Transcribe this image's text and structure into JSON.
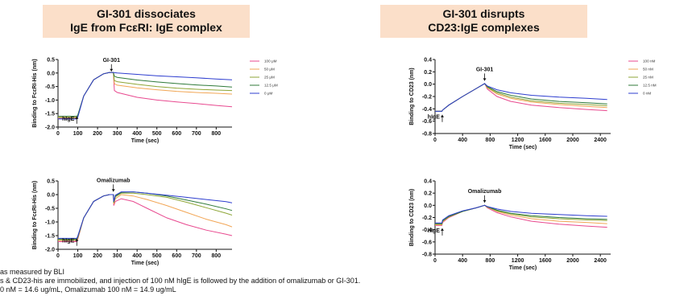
{
  "titles": {
    "left": [
      "GI-301 dissociates",
      "IgE from FcεRI: IgE complex"
    ],
    "right": [
      "GI-301 disrupts",
      "CD23:IgE complexes"
    ]
  },
  "footnotes": [
    "as measured by BLI",
    "s & CD23-his are immobilized, and injection of 100 nM hIgE is followed by the addition of omalizumab or GI-301.",
    "0 nM = 14.6 ug/mL, Omalizumab 100 nM = 14.9 ug/mL"
  ],
  "colors": {
    "title_bg": "#fbdfc9",
    "series": [
      "#e8498f",
      "#f2a656",
      "#8ea637",
      "#2f7a3a",
      "#2d3dcf"
    ]
  },
  "chart_data": [
    {
      "type": "line",
      "ylabel": "Binding to FcεRI-His (nm)",
      "xlabel": "Time (sec)",
      "xlim": [
        0,
        880
      ],
      "ylim": [
        -2.0,
        0.5
      ],
      "xticks": [
        0,
        100,
        200,
        300,
        400,
        500,
        600,
        700,
        800
      ],
      "yticks": [
        0.5,
        0.0,
        -0.5,
        -1.0,
        -1.5,
        -2.0
      ],
      "ytick_labels": [
        "0.5",
        "0.0",
        "-0.5",
        "-1.0",
        "-1.5",
        "-2.0"
      ],
      "annotations": [
        {
          "text": "GI-301",
          "x": 270,
          "y": 0.0,
          "dir": "down"
        },
        {
          "text": "hIgE",
          "x": 95,
          "y": -1.55,
          "dir": "up"
        }
      ],
      "legend": [
        "100 μM",
        "50 μM",
        "25 μM",
        "12.5 μM",
        "0 μM"
      ],
      "series": [
        {
          "name": "100 μM",
          "x": [
            0,
            95,
            100,
            130,
            180,
            230,
            260,
            280,
            285,
            300,
            400,
            500,
            600,
            700,
            800,
            880
          ],
          "y": [
            -1.68,
            -1.68,
            -1.62,
            -0.85,
            -0.25,
            -0.03,
            0.02,
            0.02,
            -0.65,
            -0.72,
            -0.9,
            -1.0,
            -1.07,
            -1.13,
            -1.2,
            -1.25
          ]
        },
        {
          "name": "50 μM",
          "x": [
            0,
            95,
            100,
            130,
            180,
            230,
            260,
            280,
            285,
            300,
            400,
            500,
            600,
            700,
            800,
            880
          ],
          "y": [
            -1.62,
            -1.62,
            -1.58,
            -0.85,
            -0.25,
            -0.03,
            0.02,
            0.02,
            -0.4,
            -0.45,
            -0.55,
            -0.62,
            -0.68,
            -0.72,
            -0.75,
            -0.78
          ]
        },
        {
          "name": "25 μM",
          "x": [
            0,
            95,
            100,
            130,
            180,
            230,
            260,
            280,
            285,
            300,
            400,
            500,
            600,
            700,
            800,
            880
          ],
          "y": [
            -1.65,
            -1.65,
            -1.6,
            -0.85,
            -0.25,
            -0.03,
            0.02,
            0.02,
            -0.28,
            -0.32,
            -0.42,
            -0.5,
            -0.56,
            -0.6,
            -0.63,
            -0.65
          ]
        },
        {
          "name": "12.5 μM",
          "x": [
            0,
            95,
            100,
            130,
            180,
            230,
            260,
            280,
            285,
            300,
            400,
            500,
            600,
            700,
            800,
            880
          ],
          "y": [
            -1.6,
            -1.6,
            -1.56,
            -0.85,
            -0.25,
            -0.03,
            0.02,
            0.02,
            -0.12,
            -0.16,
            -0.26,
            -0.33,
            -0.39,
            -0.44,
            -0.48,
            -0.52
          ]
        },
        {
          "name": "0 μM",
          "x": [
            0,
            95,
            100,
            130,
            180,
            230,
            260,
            280,
            300,
            400,
            500,
            600,
            700,
            800,
            880
          ],
          "y": [
            -1.7,
            -1.7,
            -1.64,
            -0.85,
            -0.25,
            -0.03,
            0.02,
            0.02,
            0.0,
            -0.05,
            -0.1,
            -0.14,
            -0.18,
            -0.22,
            -0.25
          ]
        }
      ]
    },
    {
      "type": "line",
      "ylabel": "Binding to FcεRI-His (nm)",
      "xlabel": "Time (sec)",
      "xlim": [
        0,
        880
      ],
      "ylim": [
        -2.0,
        0.5
      ],
      "xticks": [
        0,
        100,
        200,
        300,
        400,
        500,
        600,
        700,
        800
      ],
      "yticks": [
        0.5,
        0.0,
        -0.5,
        -1.0,
        -1.5,
        -2.0
      ],
      "ytick_labels": [
        "0.5",
        "0.0",
        "-0.5",
        "-1.0",
        "-1.5",
        "-2.0"
      ],
      "annotations": [
        {
          "text": "Omalizumab",
          "x": 280,
          "y": 0.05,
          "dir": "down"
        },
        {
          "text": "hIgE",
          "x": 95,
          "y": -1.55,
          "dir": "up"
        }
      ],
      "series": [
        {
          "name": "",
          "x": [
            0,
            95,
            100,
            130,
            180,
            230,
            260,
            280,
            282,
            290,
            320,
            380,
            450,
            550,
            650,
            750,
            850,
            880
          ],
          "y": [
            -1.72,
            -1.72,
            -1.64,
            -0.85,
            -0.25,
            -0.05,
            0.0,
            0.0,
            -0.4,
            -0.25,
            -0.15,
            -0.25,
            -0.5,
            -0.85,
            -1.1,
            -1.3,
            -1.45,
            -1.5
          ]
        },
        {
          "name": "",
          "x": [
            0,
            95,
            100,
            130,
            180,
            230,
            260,
            280,
            282,
            290,
            320,
            380,
            450,
            550,
            650,
            750,
            850,
            880
          ],
          "y": [
            -1.68,
            -1.68,
            -1.6,
            -0.85,
            -0.25,
            -0.05,
            0.0,
            0.0,
            -0.35,
            -0.15,
            0.0,
            -0.05,
            -0.18,
            -0.4,
            -0.65,
            -0.9,
            -1.1,
            -1.18
          ]
        },
        {
          "name": "",
          "x": [
            0,
            95,
            100,
            130,
            180,
            230,
            260,
            280,
            282,
            290,
            320,
            380,
            450,
            550,
            650,
            750,
            850,
            880
          ],
          "y": [
            -1.65,
            -1.65,
            -1.58,
            -0.85,
            -0.25,
            -0.05,
            0.0,
            0.0,
            -0.3,
            -0.08,
            0.05,
            0.05,
            0.0,
            -0.1,
            -0.28,
            -0.48,
            -0.68,
            -0.75
          ]
        },
        {
          "name": "",
          "x": [
            0,
            95,
            100,
            130,
            180,
            230,
            260,
            280,
            282,
            290,
            320,
            380,
            450,
            550,
            650,
            750,
            850,
            880
          ],
          "y": [
            -1.62,
            -1.62,
            -1.55,
            -0.85,
            -0.25,
            -0.05,
            0.0,
            0.0,
            -0.28,
            -0.05,
            0.08,
            0.1,
            0.05,
            -0.05,
            -0.2,
            -0.35,
            -0.52,
            -0.58
          ]
        },
        {
          "name": "",
          "x": [
            0,
            95,
            100,
            130,
            180,
            230,
            260,
            280,
            282,
            290,
            320,
            380,
            450,
            550,
            650,
            750,
            850,
            880
          ],
          "y": [
            -1.6,
            -1.6,
            -1.52,
            -0.85,
            -0.25,
            -0.05,
            0.0,
            0.0,
            -0.25,
            -0.02,
            0.1,
            0.1,
            0.05,
            -0.02,
            -0.1,
            -0.18,
            -0.26,
            -0.3
          ]
        }
      ]
    },
    {
      "type": "line",
      "ylabel": "Binding to CD23 (nm)",
      "xlabel": "Time (sec)",
      "xlim": [
        0,
        2550
      ],
      "ylim": [
        -0.8,
        0.4
      ],
      "xticks": [
        0,
        400,
        800,
        1200,
        1600,
        2000,
        2400
      ],
      "yticks": [
        0.4,
        0.2,
        0.0,
        -0.2,
        -0.4,
        -0.6,
        -0.8
      ],
      "ytick_labels": [
        "0.4",
        "0.2",
        "0.0",
        "-0.2",
        "-0.4",
        "-0.6",
        "-0.8"
      ],
      "annotations": [
        {
          "text": "GI-301",
          "x": 720,
          "y": 0.03,
          "dir": "down"
        },
        {
          "text": "hIgE",
          "x": 105,
          "y": -0.47,
          "dir": "up"
        }
      ],
      "legend": [
        "100 nM",
        "50 nM",
        "25 nM",
        "12.5 nM",
        "0 nM"
      ],
      "series": [
        {
          "name": "100 nM",
          "x": [
            0,
            100,
            110,
            200,
            400,
            600,
            720,
            760,
            900,
            1100,
            1400,
            1800,
            2200,
            2500
          ],
          "y": [
            -0.44,
            -0.44,
            -0.42,
            -0.34,
            -0.2,
            -0.07,
            0.01,
            -0.08,
            -0.2,
            -0.28,
            -0.34,
            -0.38,
            -0.41,
            -0.43
          ]
        },
        {
          "name": "50 nM",
          "x": [
            0,
            100,
            110,
            200,
            400,
            600,
            720,
            760,
            900,
            1100,
            1400,
            1800,
            2200,
            2500
          ],
          "y": [
            -0.44,
            -0.44,
            -0.42,
            -0.34,
            -0.2,
            -0.07,
            0.01,
            -0.06,
            -0.16,
            -0.23,
            -0.29,
            -0.33,
            -0.36,
            -0.38
          ]
        },
        {
          "name": "25 nM",
          "x": [
            0,
            100,
            110,
            200,
            400,
            600,
            720,
            760,
            900,
            1100,
            1400,
            1800,
            2200,
            2500
          ],
          "y": [
            -0.44,
            -0.44,
            -0.42,
            -0.34,
            -0.2,
            -0.07,
            0.01,
            -0.05,
            -0.14,
            -0.21,
            -0.27,
            -0.31,
            -0.33,
            -0.35
          ]
        },
        {
          "name": "12.5 nM",
          "x": [
            0,
            100,
            110,
            200,
            400,
            600,
            720,
            760,
            900,
            1100,
            1400,
            1800,
            2200,
            2500
          ],
          "y": [
            -0.44,
            -0.44,
            -0.42,
            -0.34,
            -0.2,
            -0.07,
            0.01,
            -0.04,
            -0.12,
            -0.18,
            -0.24,
            -0.28,
            -0.3,
            -0.32
          ]
        },
        {
          "name": "0 nM",
          "x": [
            0,
            100,
            110,
            200,
            400,
            600,
            720,
            760,
            900,
            1100,
            1400,
            1800,
            2200,
            2500
          ],
          "y": [
            -0.44,
            -0.44,
            -0.42,
            -0.34,
            -0.2,
            -0.07,
            0.01,
            -0.03,
            -0.09,
            -0.14,
            -0.18,
            -0.21,
            -0.23,
            -0.25
          ]
        }
      ]
    },
    {
      "type": "line",
      "ylabel": "Binding to CD23 (nm)",
      "xlabel": "Time (sec)",
      "xlim": [
        0,
        2550
      ],
      "ylim": [
        -0.8,
        0.4
      ],
      "xticks": [
        0,
        400,
        800,
        1200,
        1600,
        2000,
        2400
      ],
      "yticks": [
        0.4,
        0.2,
        0.0,
        -0.2,
        -0.4,
        -0.6,
        -0.8
      ],
      "ytick_labels": [
        "0.4",
        "0.2",
        "0.0",
        "-0.2",
        "-0.4",
        "-0.6",
        "-0.8"
      ],
      "annotations": [
        {
          "text": "Omalizumab",
          "x": 720,
          "y": 0.02,
          "dir": "down"
        },
        {
          "text": "hIgE",
          "x": 105,
          "y": -0.35,
          "dir": "up"
        }
      ],
      "series": [
        {
          "name": "",
          "x": [
            0,
            100,
            110,
            200,
            400,
            600,
            720,
            760,
            900,
            1100,
            1400,
            1800,
            2200,
            2500
          ],
          "y": [
            -0.33,
            -0.33,
            -0.28,
            -0.2,
            -0.1,
            -0.04,
            0.0,
            -0.04,
            -0.12,
            -0.19,
            -0.26,
            -0.31,
            -0.34,
            -0.36
          ]
        },
        {
          "name": "",
          "x": [
            0,
            100,
            110,
            200,
            400,
            600,
            720,
            760,
            900,
            1100,
            1400,
            1800,
            2200,
            2500
          ],
          "y": [
            -0.32,
            -0.32,
            -0.27,
            -0.19,
            -0.1,
            -0.04,
            0.0,
            -0.03,
            -0.1,
            -0.16,
            -0.22,
            -0.26,
            -0.28,
            -0.3
          ]
        },
        {
          "name": "",
          "x": [
            0,
            100,
            110,
            200,
            400,
            600,
            720,
            760,
            900,
            1100,
            1400,
            1800,
            2200,
            2500
          ],
          "y": [
            -0.31,
            -0.31,
            -0.26,
            -0.19,
            -0.1,
            -0.04,
            0.0,
            -0.03,
            -0.09,
            -0.14,
            -0.19,
            -0.22,
            -0.24,
            -0.25
          ]
        },
        {
          "name": "",
          "x": [
            0,
            100,
            110,
            200,
            400,
            600,
            720,
            760,
            900,
            1100,
            1400,
            1800,
            2200,
            2500
          ],
          "y": [
            -0.3,
            -0.3,
            -0.25,
            -0.18,
            -0.1,
            -0.04,
            0.0,
            -0.02,
            -0.08,
            -0.13,
            -0.17,
            -0.2,
            -0.22,
            -0.23
          ]
        },
        {
          "name": "",
          "x": [
            0,
            100,
            110,
            200,
            400,
            600,
            720,
            760,
            900,
            1100,
            1400,
            1800,
            2200,
            2500
          ],
          "y": [
            -0.29,
            -0.29,
            -0.24,
            -0.17,
            -0.09,
            -0.04,
            0.0,
            -0.02,
            -0.06,
            -0.1,
            -0.13,
            -0.15,
            -0.17,
            -0.18
          ]
        }
      ]
    }
  ]
}
